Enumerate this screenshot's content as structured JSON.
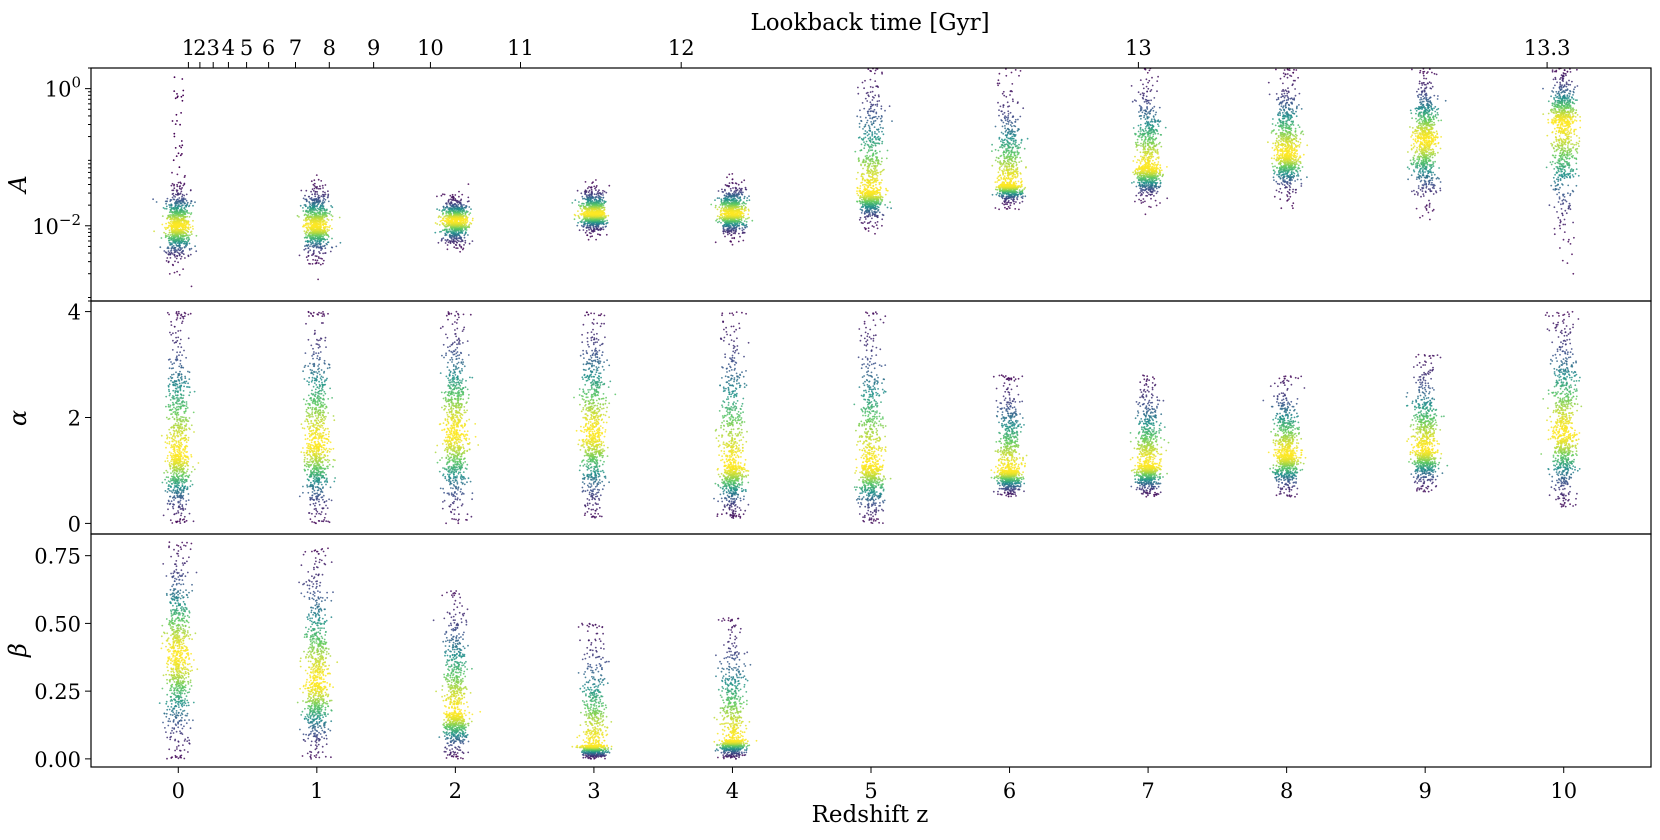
{
  "chart_data": {
    "type": "scatter",
    "description_note": "",
    "xlabel": "Redshift z",
    "x_top_label": "Lookback time [Gyr]",
    "x_ticks": [
      "0",
      "1",
      "2",
      "3",
      "4",
      "5",
      "6",
      "7",
      "8",
      "9",
      "10"
    ],
    "x_range": [
      -0.63,
      10.63
    ],
    "top_ticks": [
      {
        "label": "1",
        "z": 0.073
      },
      {
        "label": "2",
        "z": 0.156
      },
      {
        "label": "3",
        "z": 0.252
      },
      {
        "label": "4",
        "z": 0.362
      },
      {
        "label": "5",
        "z": 0.493
      },
      {
        "label": "6",
        "z": 0.652
      },
      {
        "label": "7",
        "z": 0.846
      },
      {
        "label": "8",
        "z": 1.09
      },
      {
        "label": "9",
        "z": 1.41
      },
      {
        "label": "10",
        "z": 1.82
      },
      {
        "label": "11",
        "z": 2.47
      },
      {
        "label": "12",
        "z": 3.63
      },
      {
        "label": "13",
        "z": 6.93
      },
      {
        "label": "13.3",
        "z": 9.88
      }
    ],
    "top_tick_labels_shown": [
      "1",
      "2",
      "3",
      "4",
      "5",
      "6",
      "7",
      "8",
      "9",
      "10",
      "11",
      "12",
      "13",
      "13.3"
    ],
    "colormap": [
      "#440154",
      "#3b528b",
      "#21918c",
      "#5ec962",
      "#fde725"
    ],
    "panels": [
      {
        "ylabel": "A",
        "scale": "log",
        "ylim": [
          0.0008,
          2.0
        ],
        "ticks": [
          {
            "label": "10⁰",
            "base": "10",
            "exp": "0",
            "value": 1.0
          },
          {
            "label": "10⁻²",
            "base": "10",
            "exp": "−2",
            "value": 0.01
          }
        ],
        "series": [
          {
            "z": 0,
            "log10_center": -2.0,
            "log10_spread_low": 0.55,
            "log10_spread_high": 0.6,
            "outlier_max": 1.5
          },
          {
            "z": 1,
            "log10_center": -2.0,
            "log10_spread_low": 0.5,
            "log10_spread_high": 0.6
          },
          {
            "z": 2,
            "log10_center": -1.92,
            "log10_spread_low": 0.4,
            "log10_spread_high": 0.35
          },
          {
            "z": 3,
            "log10_center": -1.82,
            "log10_spread_low": 0.3,
            "log10_spread_high": 0.4
          },
          {
            "z": 4,
            "log10_center": -1.82,
            "log10_spread_low": 0.35,
            "log10_spread_high": 0.45
          },
          {
            "z": 5,
            "log10_center": -1.5,
            "log10_spread_low": 0.5,
            "log10_spread_high": 1.8
          },
          {
            "z": 6,
            "log10_center": -1.4,
            "log10_spread_low": 0.3,
            "log10_spread_high": 1.5
          },
          {
            "z": 7,
            "log10_center": -1.15,
            "log10_spread_low": 0.5,
            "log10_spread_high": 1.4
          },
          {
            "z": 8,
            "log10_center": -0.95,
            "log10_spread_low": 0.65,
            "log10_spread_high": 1.2
          },
          {
            "z": 9,
            "log10_center": -0.75,
            "log10_spread_low": 1.0,
            "log10_spread_high": 1.0
          },
          {
            "z": 10,
            "log10_center": -0.5,
            "log10_spread_low": 1.7,
            "log10_spread_high": 0.8
          }
        ]
      },
      {
        "ylabel": "α",
        "scale": "linear",
        "ylim": [
          -0.2,
          4.2
        ],
        "ticks": [
          {
            "label": "0",
            "value": 0
          },
          {
            "label": "2",
            "value": 2
          },
          {
            "label": "4",
            "value": 4
          }
        ],
        "series": [
          {
            "z": 0,
            "center": 1.3,
            "low": 0.0,
            "high": 4.0
          },
          {
            "z": 1,
            "center": 1.5,
            "low": 0.0,
            "high": 4.0
          },
          {
            "z": 2,
            "center": 1.7,
            "low": 0.0,
            "high": 4.0
          },
          {
            "z": 3,
            "center": 1.7,
            "low": 0.1,
            "high": 4.0
          },
          {
            "z": 4,
            "center": 1.1,
            "low": 0.1,
            "high": 4.0
          },
          {
            "z": 5,
            "center": 1.1,
            "low": 0.0,
            "high": 4.0
          },
          {
            "z": 6,
            "center": 1.0,
            "low": 0.5,
            "high": 2.8
          },
          {
            "z": 7,
            "center": 1.1,
            "low": 0.5,
            "high": 2.8
          },
          {
            "z": 8,
            "center": 1.3,
            "low": 0.5,
            "high": 2.8
          },
          {
            "z": 9,
            "center": 1.4,
            "low": 0.6,
            "high": 3.2
          },
          {
            "z": 10,
            "center": 1.7,
            "low": 0.3,
            "high": 4.0
          }
        ]
      },
      {
        "ylabel": "β",
        "scale": "linear",
        "ylim": [
          -0.03,
          0.83
        ],
        "ticks": [
          {
            "label": "0.00",
            "value": 0
          },
          {
            "label": "0.25",
            "value": 0.25
          },
          {
            "label": "0.50",
            "value": 0.5
          },
          {
            "label": "0.75",
            "value": 0.75
          }
        ],
        "series": [
          {
            "z": 0,
            "center": 0.38,
            "low": 0.0,
            "high": 0.8
          },
          {
            "z": 1,
            "center": 0.28,
            "low": 0.0,
            "high": 0.78
          },
          {
            "z": 2,
            "center": 0.17,
            "low": 0.0,
            "high": 0.62
          },
          {
            "z": 3,
            "center": 0.05,
            "low": 0.0,
            "high": 0.5
          },
          {
            "z": 4,
            "center": 0.07,
            "low": 0.0,
            "high": 0.52
          }
        ]
      }
    ]
  }
}
